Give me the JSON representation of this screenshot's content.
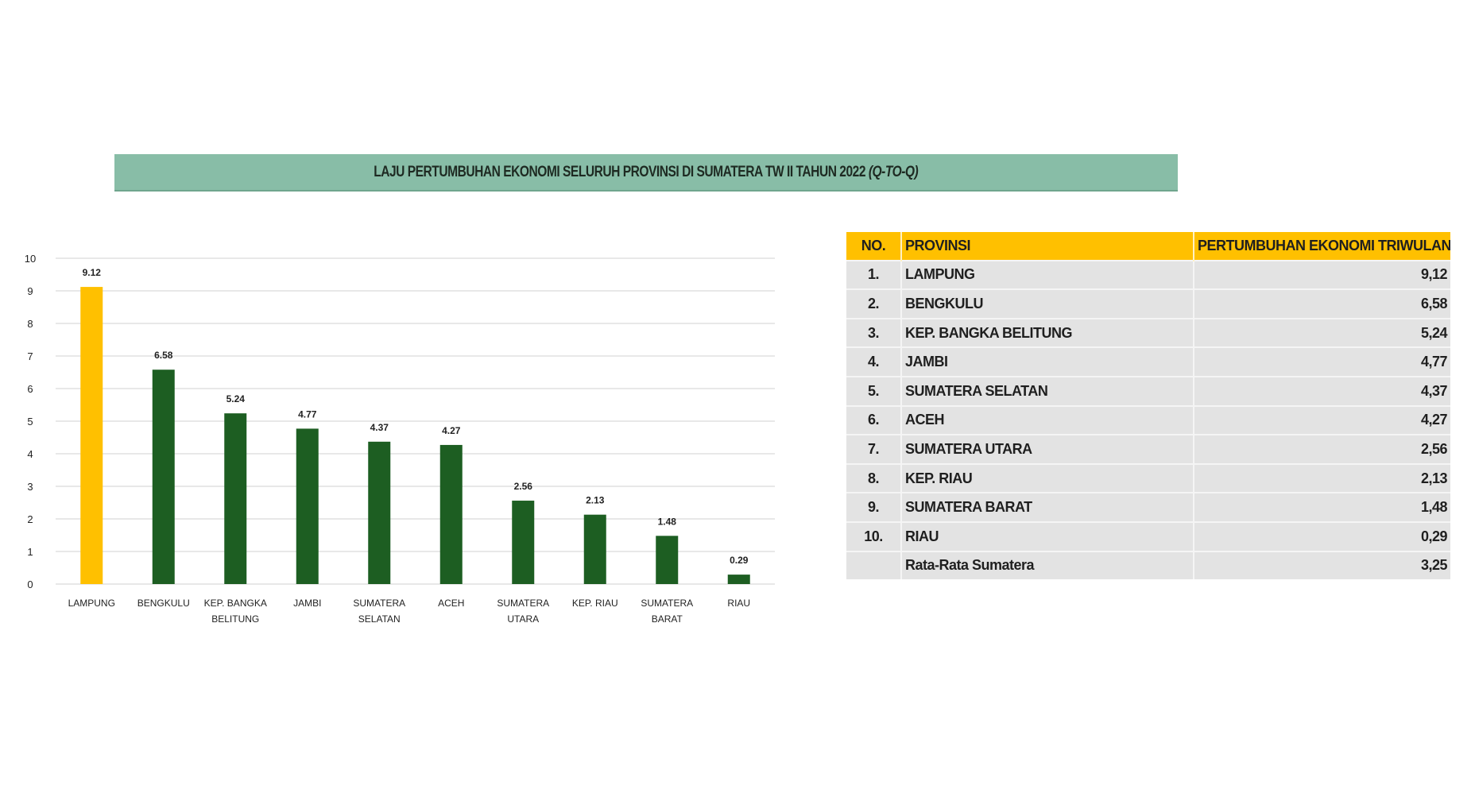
{
  "title": {
    "main": "LAJU PERTUMBUHAN EKONOMI SELURUH PROVINSI DI SUMATERA TW II TAHUN 2022",
    "suffix": "(Q-TO-Q)"
  },
  "colors": {
    "highlight_bar": "#ffc000",
    "bar": "#1d5e22",
    "title_bar": "#88bda7",
    "table_header": "#ffc000",
    "table_row": "#e3e3e3"
  },
  "chart_data": {
    "type": "bar",
    "categories": [
      [
        "LAMPUNG"
      ],
      [
        "BENGKULU"
      ],
      [
        "KEP. BANGKA",
        "BELITUNG"
      ],
      [
        "JAMBI"
      ],
      [
        "SUMATERA",
        "SELATAN"
      ],
      [
        "ACEH"
      ],
      [
        "SUMATERA",
        "UTARA"
      ],
      [
        "KEP. RIAU"
      ],
      [
        "SUMATERA",
        "BARAT"
      ],
      [
        "RIAU"
      ]
    ],
    "values": [
      9.12,
      6.58,
      5.24,
      4.77,
      4.37,
      4.27,
      2.56,
      2.13,
      1.48,
      0.29
    ],
    "value_labels": [
      "9.12",
      "6.58",
      "5.24",
      "4.77",
      "4.37",
      "4.27",
      "2.56",
      "2.13",
      "1.48",
      "0.29"
    ],
    "highlight_index": 0,
    "ylim": [
      0,
      10
    ],
    "yticks": [
      "0",
      "1",
      "2",
      "3",
      "4",
      "5",
      "6",
      "7",
      "8",
      "9",
      "10"
    ],
    "grid": true,
    "xlabel": "",
    "ylabel": ""
  },
  "table": {
    "headers": [
      "NO.",
      "PROVINSI",
      "PERTUMBUHAN EKONOMI TRIWULAN II"
    ],
    "rows": [
      {
        "no": "1.",
        "province": "LAMPUNG",
        "value": "9,12"
      },
      {
        "no": "2.",
        "province": "BENGKULU",
        "value": "6,58"
      },
      {
        "no": "3.",
        "province": "KEP. BANGKA BELITUNG",
        "value": "5,24"
      },
      {
        "no": "4.",
        "province": "JAMBI",
        "value": "4,77"
      },
      {
        "no": "5.",
        "province": "SUMATERA SELATAN",
        "value": "4,37"
      },
      {
        "no": "6.",
        "province": "ACEH",
        "value": "4,27"
      },
      {
        "no": "7.",
        "province": "SUMATERA UTARA",
        "value": "2,56"
      },
      {
        "no": "8.",
        "province": "KEP. RIAU",
        "value": "2,13"
      },
      {
        "no": "9.",
        "province": "SUMATERA BARAT",
        "value": "1,48"
      },
      {
        "no": "10.",
        "province": "RIAU",
        "value": "0,29"
      }
    ],
    "average": {
      "label": "Rata-Rata Sumatera",
      "value": "3,25"
    }
  }
}
